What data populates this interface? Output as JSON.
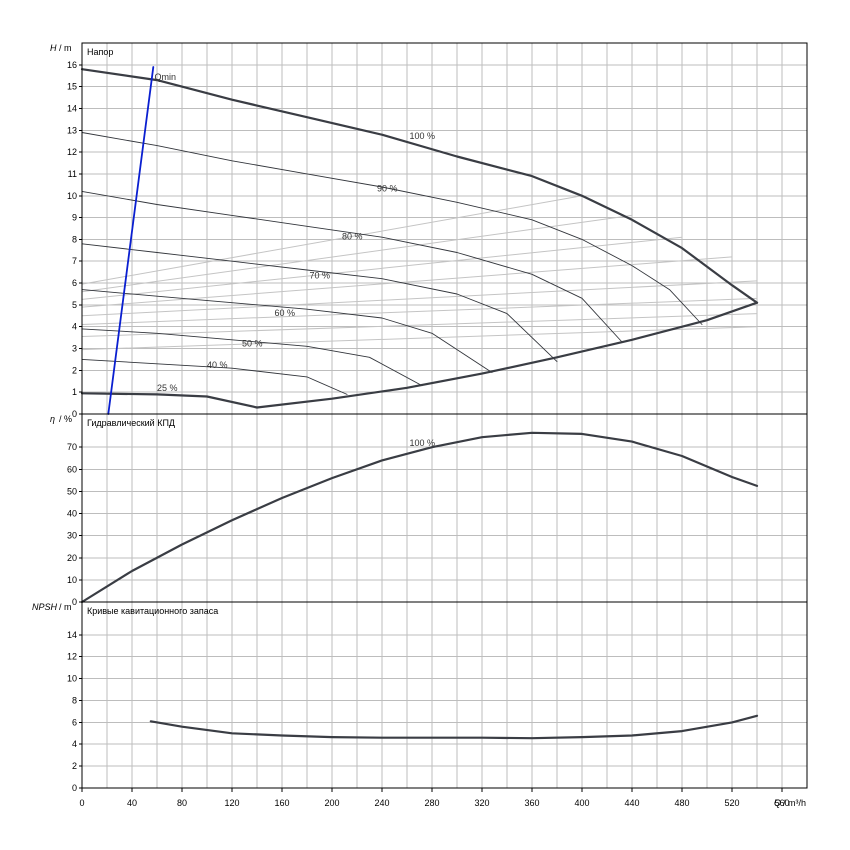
{
  "chart_data": [
    {
      "type": "line",
      "title": "Напор",
      "ylabel_symbol": "H",
      "ylabel_unit": "/ m",
      "xlim": [
        0,
        580
      ],
      "ylim": [
        0,
        17
      ],
      "yticks": [
        0,
        1,
        2,
        3,
        4,
        5,
        6,
        7,
        8,
        9,
        10,
        11,
        12,
        13,
        14,
        15,
        16
      ],
      "series": [
        {
          "name": "100 %",
          "weight": "bold",
          "points": [
            [
              0,
              15.8
            ],
            [
              60,
              15.3
            ],
            [
              120,
              14.4
            ],
            [
              180,
              13.6
            ],
            [
              240,
              12.8
            ],
            [
              300,
              11.8
            ],
            [
              360,
              10.9
            ],
            [
              400,
              10.0
            ],
            [
              440,
              8.9
            ],
            [
              480,
              7.6
            ],
            [
              520,
              5.9
            ],
            [
              540,
              5.1
            ]
          ]
        },
        {
          "name": "90 %",
          "weight": "thin",
          "points": [
            [
              0,
              12.9
            ],
            [
              60,
              12.3
            ],
            [
              120,
              11.6
            ],
            [
              180,
              11.0
            ],
            [
              240,
              10.4
            ],
            [
              300,
              9.7
            ],
            [
              360,
              8.9
            ],
            [
              400,
              8.0
            ],
            [
              440,
              6.8
            ],
            [
              470,
              5.7
            ],
            [
              496,
              4.1
            ]
          ]
        },
        {
          "name": "80 %",
          "weight": "thin",
          "points": [
            [
              0,
              10.2
            ],
            [
              60,
              9.6
            ],
            [
              120,
              9.1
            ],
            [
              180,
              8.6
            ],
            [
              240,
              8.1
            ],
            [
              300,
              7.4
            ],
            [
              360,
              6.4
            ],
            [
              400,
              5.3
            ],
            [
              432,
              3.3
            ]
          ]
        },
        {
          "name": "70 %",
          "weight": "thin",
          "points": [
            [
              0,
              7.8
            ],
            [
              60,
              7.4
            ],
            [
              120,
              7.0
            ],
            [
              180,
              6.6
            ],
            [
              240,
              6.2
            ],
            [
              300,
              5.5
            ],
            [
              340,
              4.6
            ],
            [
              380,
              2.4
            ]
          ]
        },
        {
          "name": "60 %",
          "weight": "thin",
          "points": [
            [
              0,
              5.7
            ],
            [
              60,
              5.4
            ],
            [
              120,
              5.1
            ],
            [
              180,
              4.8
            ],
            [
              240,
              4.4
            ],
            [
              280,
              3.7
            ],
            [
              328,
              1.9
            ]
          ]
        },
        {
          "name": "50 %",
          "weight": "thin",
          "points": [
            [
              0,
              3.9
            ],
            [
              60,
              3.7
            ],
            [
              120,
              3.4
            ],
            [
              180,
              3.1
            ],
            [
              230,
              2.6
            ],
            [
              272,
              1.3
            ]
          ]
        },
        {
          "name": "40 %",
          "weight": "thin",
          "points": [
            [
              0,
              2.5
            ],
            [
              60,
              2.3
            ],
            [
              120,
              2.1
            ],
            [
              180,
              1.7
            ],
            [
              212,
              0.9
            ]
          ]
        },
        {
          "name": "25 %",
          "weight": "bold",
          "points": [
            [
              0,
              0.95
            ],
            [
              60,
              0.9
            ],
            [
              100,
              0.8
            ],
            [
              140,
              0.3
            ]
          ]
        },
        {
          "name": "",
          "weight": "bold",
          "points": [
            [
              140,
              0.3
            ],
            [
              200,
              0.7
            ],
            [
              260,
              1.2
            ],
            [
              320,
              1.85
            ],
            [
              380,
              2.6
            ],
            [
              440,
              3.4
            ],
            [
              500,
              4.3
            ],
            [
              540,
              5.1
            ]
          ]
        },
        {
          "name": "Qmin",
          "weight": "blue",
          "points": [
            [
              21,
              0
            ],
            [
              57,
              15.9
            ]
          ]
        }
      ],
      "iso_lines": [
        [
          [
            0,
            5.95
          ],
          [
            400,
            10.0
          ]
        ],
        [
          [
            0,
            5.6
          ],
          [
            440,
            9.1
          ]
        ],
        [
          [
            0,
            5.25
          ],
          [
            480,
            8.1
          ]
        ],
        [
          [
            0,
            4.9
          ],
          [
            520,
            7.2
          ]
        ],
        [
          [
            0,
            4.5
          ],
          [
            540,
            6.1
          ]
        ],
        [
          [
            0,
            4.1
          ],
          [
            540,
            5.3
          ]
        ],
        [
          [
            0,
            3.55
          ],
          [
            540,
            4.6
          ]
        ],
        [
          [
            0,
            2.95
          ],
          [
            540,
            4.0
          ]
        ]
      ],
      "labels": [
        {
          "text": "100 %",
          "x": 262,
          "y": 12.6
        },
        {
          "text": "90 %",
          "x": 236,
          "y": 10.2
        },
        {
          "text": "80 %",
          "x": 208,
          "y": 8.0
        },
        {
          "text": "70 %",
          "x": 182,
          "y": 6.2
        },
        {
          "text": "60 %",
          "x": 154,
          "y": 4.5
        },
        {
          "text": "50 %",
          "x": 128,
          "y": 3.1
        },
        {
          "text": "40 %",
          "x": 100,
          "y": 2.1
        },
        {
          "text": "25 %",
          "x": 60,
          "y": 1.05
        },
        {
          "text": "Qmin",
          "x": 58,
          "y": 15.3
        }
      ]
    },
    {
      "type": "line",
      "title": "Гидравлический КПД",
      "ylabel_symbol": "η",
      "ylabel_unit": "/ %",
      "xlim": [
        0,
        580
      ],
      "ylim": [
        0,
        85
      ],
      "yticks": [
        0,
        10,
        20,
        30,
        40,
        50,
        60,
        70
      ],
      "series": [
        {
          "name": "100 %",
          "weight": "bold",
          "points": [
            [
              0,
              0
            ],
            [
              40,
              14
            ],
            [
              80,
              26
            ],
            [
              120,
              37
            ],
            [
              160,
              47
            ],
            [
              200,
              56
            ],
            [
              240,
              64
            ],
            [
              280,
              70
            ],
            [
              320,
              74.5
            ],
            [
              360,
              76.5
            ],
            [
              400,
              76
            ],
            [
              440,
              72.5
            ],
            [
              480,
              66
            ],
            [
              520,
              56.5
            ],
            [
              540,
              52.5
            ]
          ]
        }
      ],
      "labels": [
        {
          "text": "100 %",
          "x": 262,
          "y": 70.5
        }
      ]
    },
    {
      "type": "line",
      "title": "Кривые кавитационного запаса",
      "ylabel_symbol": "NPSH",
      "ylabel_unit": "/ m",
      "xlim": [
        0,
        580
      ],
      "ylim": [
        0,
        17
      ],
      "yticks": [
        0,
        2,
        4,
        6,
        8,
        10,
        12,
        14
      ],
      "xticks": [
        0,
        40,
        80,
        120,
        160,
        200,
        240,
        280,
        320,
        360,
        400,
        440,
        480,
        520,
        560
      ],
      "xlabel_symbol": "Q",
      "xlabel_unit": "/ m³/h",
      "series": [
        {
          "name": "",
          "weight": "bold",
          "points": [
            [
              55,
              6.1
            ],
            [
              80,
              5.6
            ],
            [
              120,
              5.0
            ],
            [
              160,
              4.8
            ],
            [
              200,
              4.65
            ],
            [
              240,
              4.6
            ],
            [
              280,
              4.6
            ],
            [
              320,
              4.6
            ],
            [
              360,
              4.55
            ],
            [
              400,
              4.65
            ],
            [
              440,
              4.8
            ],
            [
              480,
              5.2
            ],
            [
              520,
              6.0
            ],
            [
              540,
              6.6
            ]
          ]
        }
      ]
    }
  ]
}
